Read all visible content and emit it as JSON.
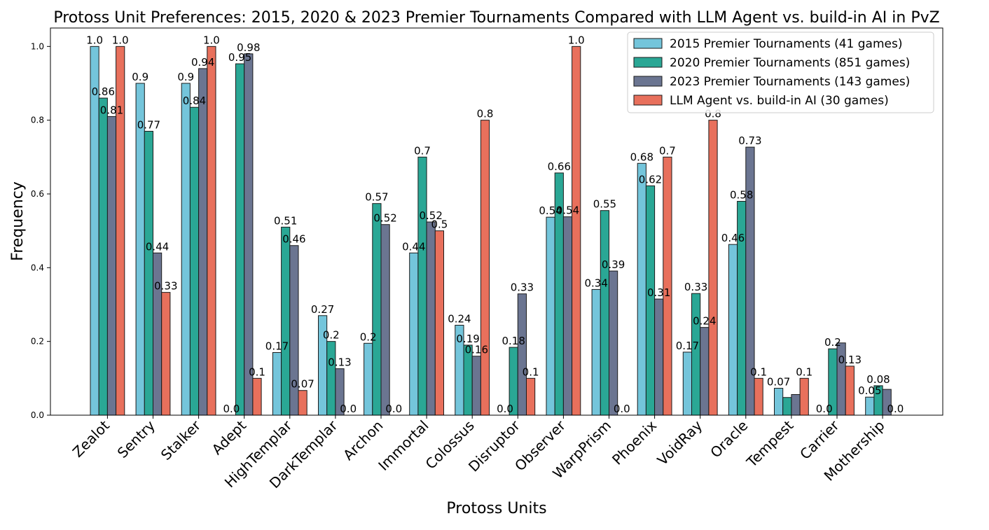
{
  "chart_data": {
    "type": "bar",
    "title": "Protoss Unit Preferences: 2015, 2020 & 2023 Premier Tournaments Compared with LLM Agent vs. build-in AI in PvZ",
    "xlabel": "Protoss Units",
    "ylabel": "Frequency",
    "ylim": [
      0,
      1.05
    ],
    "yticks": [
      "0.0",
      "0.2",
      "0.4",
      "0.6",
      "0.8",
      "1.0"
    ],
    "ytick_values": [
      0,
      0.2,
      0.4,
      0.6,
      0.8,
      1.0
    ],
    "grid": false,
    "legend_position": "top-right",
    "categories": [
      "Zealot",
      "Sentry",
      "Stalker",
      "Adept",
      "HighTemplar",
      "DarkTemplar",
      "Archon",
      "Immortal",
      "Colossus",
      "Disruptor",
      "Observer",
      "WarpPrism",
      "Phoenix",
      "VoidRay",
      "Oracle",
      "Tempest",
      "Carrier",
      "Mothership"
    ],
    "series": [
      {
        "name": "2015 Premier Tournaments (41 games)",
        "color": "#74c5db",
        "values": [
          1.0,
          0.9,
          0.9,
          0.0,
          0.17,
          0.27,
          0.195,
          0.44,
          0.244,
          0.0,
          0.537,
          0.341,
          0.683,
          0.171,
          0.463,
          0.073,
          0.0,
          0.049
        ],
        "labels": [
          "1.0",
          "0.9",
          "0.9",
          "0.0",
          "0.17",
          "0.27",
          "0.2",
          "0.44",
          "0.24",
          "0.0",
          "0.54",
          "0.34",
          "0.68",
          "0.17",
          "0.46",
          "0.07",
          "0.0",
          "0.05"
        ]
      },
      {
        "name": "2020 Premier Tournaments (851 games)",
        "color": "#2aa795",
        "values": [
          0.86,
          0.77,
          0.835,
          0.953,
          0.51,
          0.2,
          0.574,
          0.7,
          0.19,
          0.184,
          0.657,
          0.555,
          0.622,
          0.33,
          0.58,
          0.048,
          0.18,
          0.08
        ],
        "labels": [
          "0.86",
          "0.77",
          "0.84",
          "0.95",
          "0.51",
          "0.2",
          "0.57",
          "0.7",
          "0.19",
          "0.18",
          "0.66",
          "0.55",
          "0.62",
          "0.33",
          "0.58",
          "",
          "0.2",
          "0.08"
        ]
      },
      {
        "name": "2023 Premier Tournaments (143 games)",
        "color": "#6b7591",
        "values": [
          0.81,
          0.44,
          0.94,
          0.98,
          0.46,
          0.126,
          0.517,
          0.524,
          0.16,
          0.329,
          0.538,
          0.391,
          0.315,
          0.238,
          0.727,
          0.056,
          0.196,
          0.07
        ],
        "labels": [
          "0.81",
          "0.44",
          "0.94",
          "0.98",
          "0.46",
          "0.13",
          "0.52",
          "0.52",
          "0.16",
          "0.33",
          "0.54",
          "0.39",
          "0.31",
          "0.24",
          "0.73",
          "",
          "",
          ""
        ]
      },
      {
        "name": "LLM Agent vs. build-in AI (30 games)",
        "color": "#e8705c",
        "values": [
          1.0,
          0.333,
          1.0,
          0.1,
          0.067,
          0.0,
          0.0,
          0.5,
          0.8,
          0.1,
          1.0,
          0.0,
          0.7,
          0.8,
          0.1,
          0.1,
          0.133,
          0.0
        ],
        "labels": [
          "1.0",
          "0.33",
          "1.0",
          "0.1",
          "0.07",
          "0.0",
          "0.0",
          "0.5",
          "0.8",
          "0.1",
          "1.0",
          "0.0",
          "0.7",
          "0.8",
          "0.1",
          "0.1",
          "0.13",
          "0.0"
        ]
      }
    ]
  }
}
